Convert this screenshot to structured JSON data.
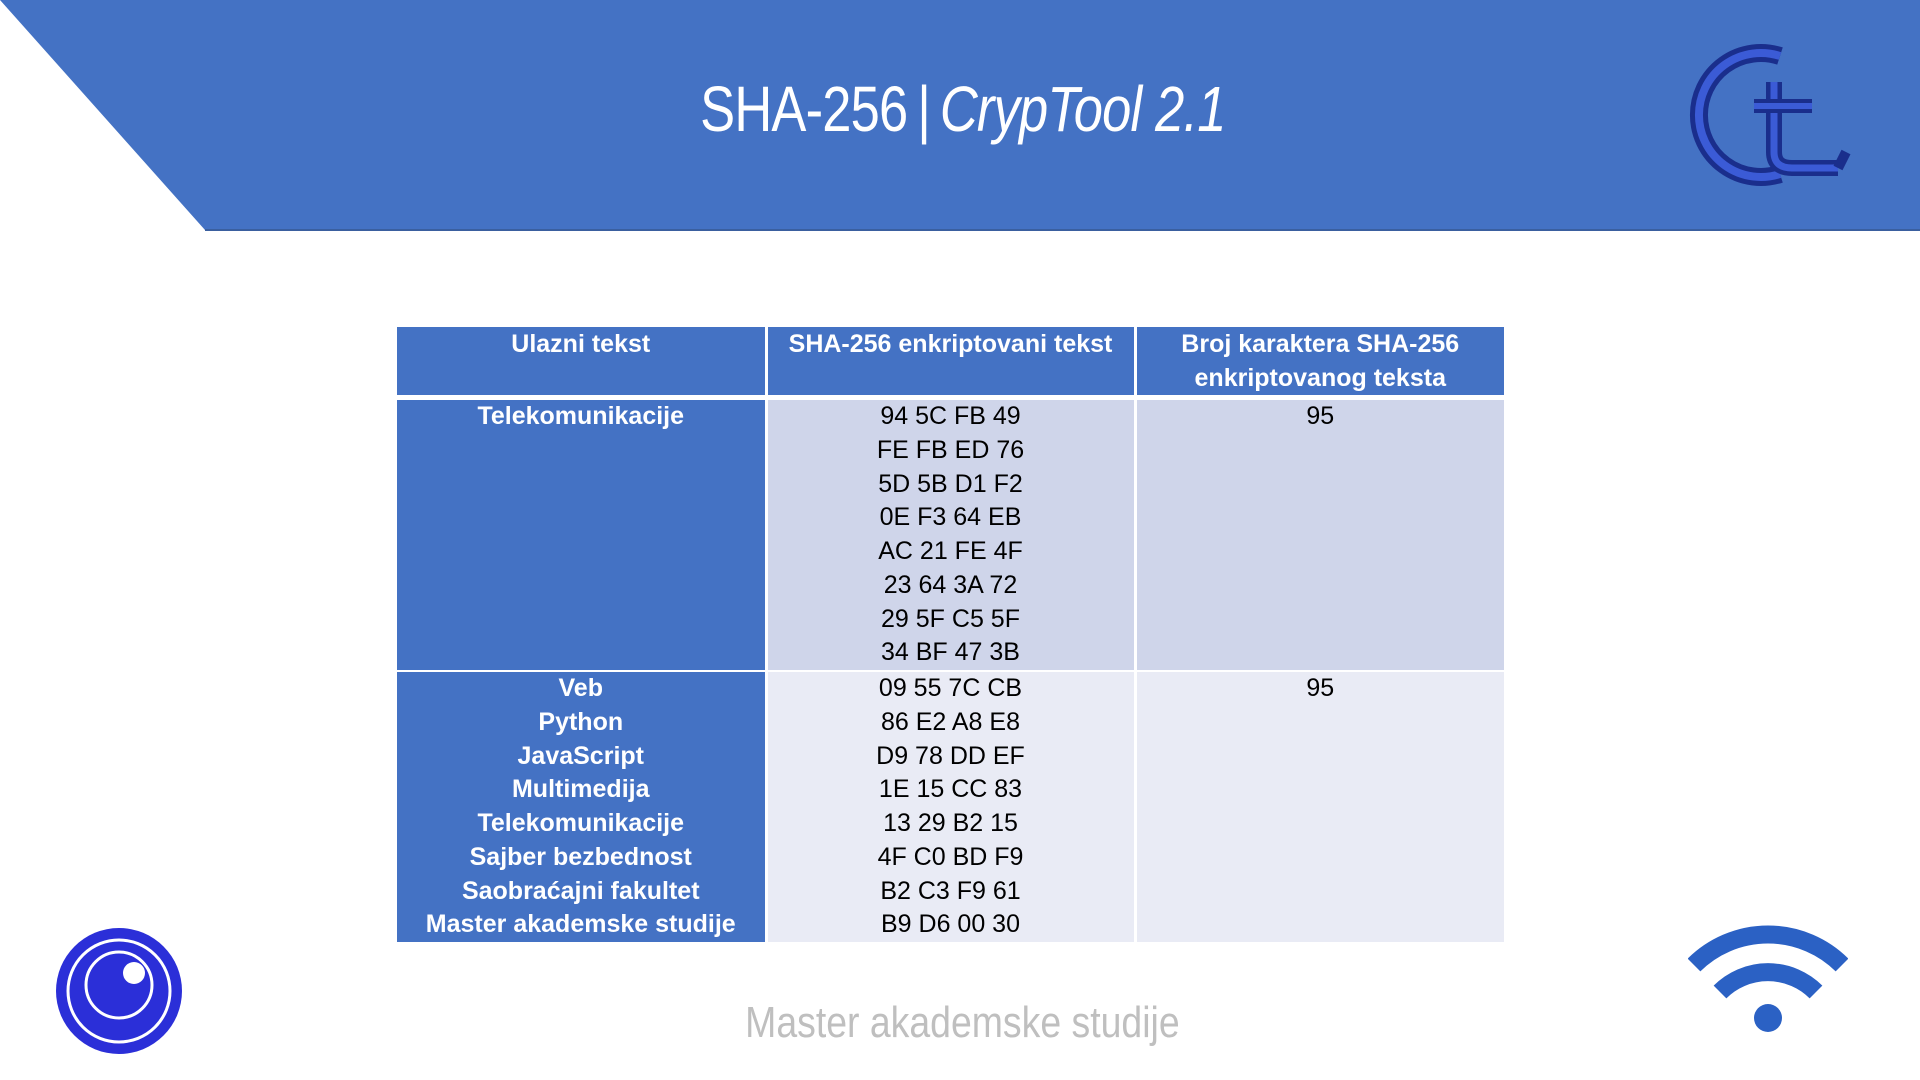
{
  "header": {
    "title_main": "SHA-256",
    "separator": "|",
    "title_sub": "CrypTool 2.1",
    "banner_color": "#4472C4",
    "logo_icon": "cryptool-ct-logo-icon"
  },
  "table": {
    "headers": [
      "Ulazni tekst",
      "SHA-256 enkriptovani tekst",
      "Broj karaktera SHA-256 enkriptovanog teksta"
    ],
    "rows": [
      {
        "input": [
          "Telekomunikacije"
        ],
        "hash": [
          "94 5C FB 49",
          "FE FB ED 76",
          "5D 5B D1 F2",
          "0E F3 64 EB",
          "AC 21 FE 4F",
          "23 64 3A 72",
          "29 5F C5 5F",
          "34 BF 47 3B"
        ],
        "count": "95"
      },
      {
        "input": [
          "Veb",
          "Python",
          "JavaScript",
          "Multimedija",
          "Telekomunikacije",
          "Sajber bezbednost",
          "Saobraćajni fakultet",
          "Master akademske studije"
        ],
        "hash": [
          "09 55 7C CB",
          "86 E2 A8 E8",
          "D9 78 DD EF",
          "1E 15 CC 83",
          "13 29 B2 15",
          "4F C0 BD F9",
          "B2 C3 F9 61",
          "B9 D6 00 30"
        ],
        "count": "95"
      }
    ]
  },
  "footer": {
    "text": "Master akademske studije",
    "left_icon": "eye-circle-icon",
    "right_icon": "wifi-icon"
  },
  "colors": {
    "accent": "#4472C4",
    "row_light_1": "#CFD5EA",
    "row_light_2": "#E9EBF5",
    "footer_text": "#BFBFBF"
  }
}
